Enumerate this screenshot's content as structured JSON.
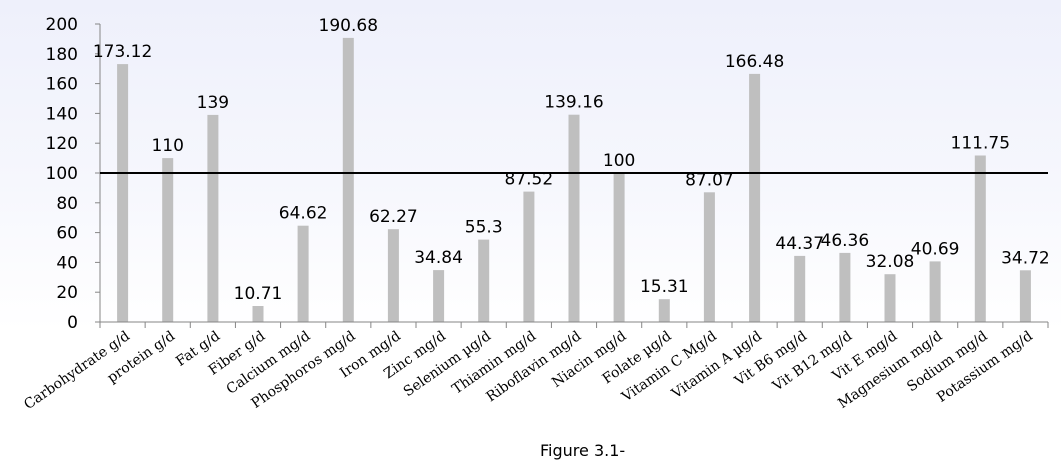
{
  "chart_data": {
    "type": "bar",
    "categories": [
      "Carbohydrate g/d",
      "protein g/d",
      "Fat g/d",
      "Fiber g/d",
      "Calcium mg/d",
      "Phosphoros mg/d",
      "Iron mg/d",
      "Zinc mg/d",
      "Selenium µg/d",
      "Thiamin mg/d",
      "Riboflavin mg/d",
      "Niacin mg/d",
      "Folate µg/d",
      "Vitamin C Mg/d",
      "Vitamin A µg/d",
      "Vit B6 mg/d",
      "Vit B12 mg/d",
      "Vit E mg/d",
      "Magnesium mg/d",
      "Sodium mg/d",
      "Potassium mg/d"
    ],
    "values": [
      173.12,
      110,
      139,
      10.71,
      64.62,
      190.68,
      62.27,
      34.84,
      55.3,
      87.52,
      139.16,
      100,
      15.31,
      87.07,
      166.48,
      44.37,
      46.36,
      32.08,
      40.69,
      111.75,
      34.72
    ],
    "data_labels": [
      "173.12",
      "110",
      "139",
      "10.71",
      "64.62",
      "190.68",
      "62.27",
      "34.84",
      "55.3",
      "87.52",
      "139.16",
      "100",
      "15.31",
      "87.07",
      "166.48",
      "44.37",
      "46.36",
      "32.08",
      "40.69",
      "111.75",
      "34.72"
    ],
    "yticks": [
      0,
      20,
      40,
      60,
      80,
      100,
      120,
      140,
      160,
      180,
      200
    ],
    "ylim": [
      0,
      200
    ],
    "reference_line": 100,
    "bar_color": "#bfbfbf",
    "reference_line_color": "#000000",
    "grid": false,
    "legend": false
  },
  "caption": "Figure 3.1-"
}
